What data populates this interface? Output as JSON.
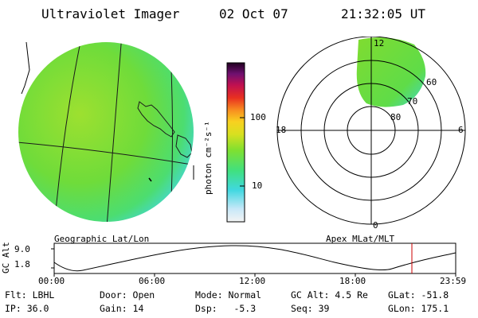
{
  "header": {
    "title": "Ultraviolet Imager",
    "date": "02 Oct 07",
    "time": "21:32:05 UT"
  },
  "colorbar": {
    "unit": "photon cm⁻²s⁻¹",
    "ticks": [
      "100",
      "10"
    ]
  },
  "map": {
    "caption": "Geographic Lat/Lon",
    "colors": {
      "background_disk": "#6fdc3a",
      "coast": "#000000"
    }
  },
  "polar": {
    "caption": "Apex MLat/MLT",
    "mlt_labels": {
      "top": "12",
      "left": "18",
      "right": "6",
      "bottom": "0"
    },
    "mlat_labels": [
      "60",
      "70",
      "80"
    ]
  },
  "altitude_plot": {
    "ylabel": "GC Alt",
    "ymax": "9.0",
    "ymin": "1.8",
    "x_ticks": [
      "00:00",
      "06:00",
      "12:00",
      "18:00",
      "23:59"
    ],
    "marker_color": "#cc0000"
  },
  "status": {
    "flt": "Flt: LBHL",
    "ip": "IP: 36.0",
    "door": "Door: Open",
    "gain": "Gain: 14",
    "mode": "Mode: Normal",
    "dsp": "Dsp:   -5.3",
    "gcalt": "GC Alt: 4.5 Re",
    "seq": "Seq: 39",
    "glat": "GLat: -51.8",
    "glon": "GLon: 175.1"
  }
}
